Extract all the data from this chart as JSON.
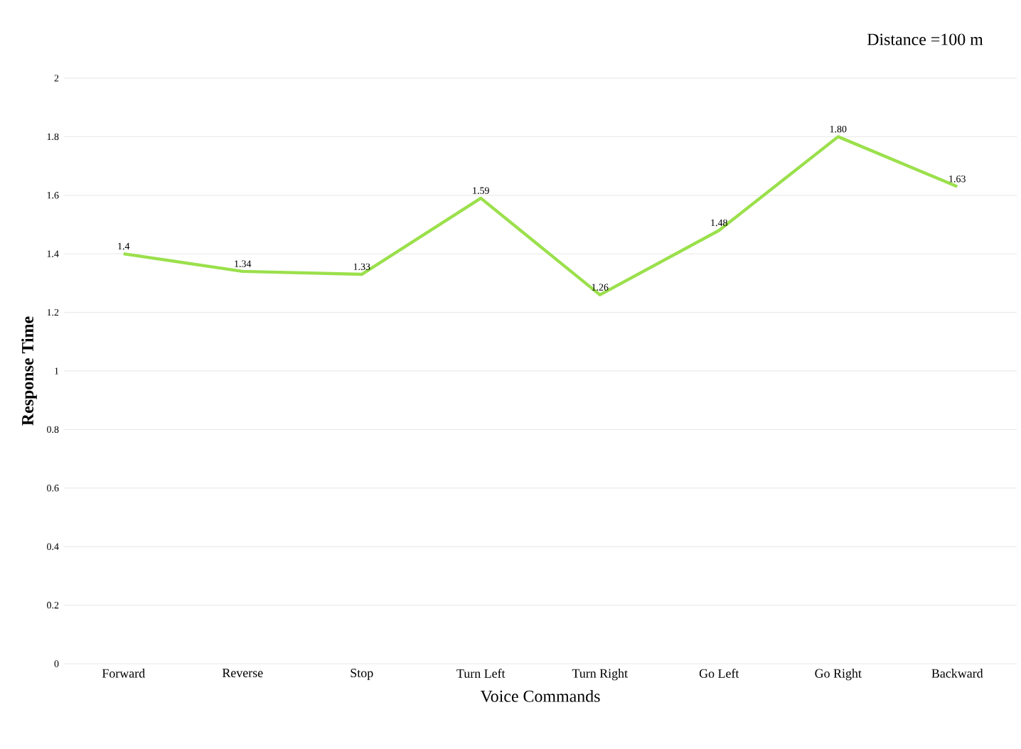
{
  "chart_data": {
    "type": "line",
    "title": "Distance =100 m",
    "xlabel": "Voice Commands",
    "ylabel": "Response Time",
    "categories": [
      "Forward",
      "Reverse",
      "Stop",
      "Turn Left",
      "Turn Right",
      "Go Left",
      "Go Right",
      "Backward"
    ],
    "series": [
      {
        "color": "#9be04c",
        "values": [
          1.4,
          1.34,
          1.33,
          1.59,
          1.26,
          1.48,
          1.8,
          1.63
        ],
        "value_labels": [
          "1.4",
          "1.34",
          "1.33",
          "1.59",
          "1.26",
          "1.48",
          "1.80",
          "1.63"
        ]
      }
    ],
    "ylim": [
      0,
      2
    ],
    "yticks": [
      0,
      0.2,
      0.4,
      0.6,
      0.8,
      1,
      1.2,
      1.4,
      1.6,
      1.8,
      2
    ],
    "grid": "y",
    "line_style": "solid"
  }
}
